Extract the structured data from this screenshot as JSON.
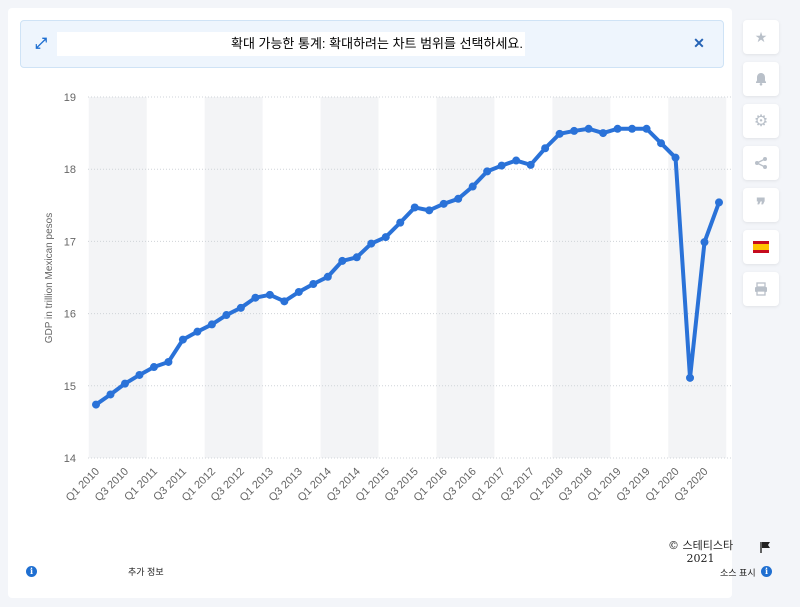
{
  "banner": {
    "text": "확대 가능한 통계: 확대하려는 차트 범위를 선택하세요.",
    "expand_icon": "expand-icon",
    "close_icon": "close-icon",
    "close_symbol": "✕"
  },
  "sidebar": {
    "buttons": [
      {
        "name": "favorite-button",
        "icon": "star-icon",
        "glyph": "★"
      },
      {
        "name": "notification-button",
        "icon": "bell-icon",
        "glyph": "🔔"
      },
      {
        "name": "settings-button",
        "icon": "gear-icon",
        "glyph": "⚙"
      },
      {
        "name": "share-button",
        "icon": "share-icon",
        "glyph": "⋖"
      },
      {
        "name": "cite-button",
        "icon": "quote-icon",
        "glyph": "❞"
      },
      {
        "name": "language-button",
        "icon": "spain-flag-icon",
        "glyph": ""
      },
      {
        "name": "print-button",
        "icon": "printer-icon",
        "glyph": "⎙"
      }
    ]
  },
  "footer": {
    "more_info": "추가 정보",
    "show_source": "소스 표시",
    "copyright_line1": "© 스테티스타",
    "copyright_line2": "2021"
  },
  "colors": {
    "line": "#2a72d8",
    "band": "#f3f4f6",
    "grid": "#cfd3d8",
    "accent": "#1f6fd1"
  },
  "chart_data": {
    "type": "line",
    "title": "",
    "xlabel": "",
    "ylabel": "GDP in trillion Mexican pesos",
    "ylim": [
      14,
      19
    ],
    "yticks": [
      14,
      15,
      16,
      17,
      18,
      19
    ],
    "grid": true,
    "x": [
      "Q1 2010",
      "Q2 2010",
      "Q3 2010",
      "Q4 2010",
      "Q1 2011",
      "Q2 2011",
      "Q3 2011",
      "Q4 2011",
      "Q1 2012",
      "Q2 2012",
      "Q3 2012",
      "Q4 2012",
      "Q1 2013",
      "Q2 2013",
      "Q3 2013",
      "Q4 2013",
      "Q1 2014",
      "Q2 2014",
      "Q3 2014",
      "Q4 2014",
      "Q1 2015",
      "Q2 2015",
      "Q3 2015",
      "Q4 2015",
      "Q1 2016",
      "Q2 2016",
      "Q3 2016",
      "Q4 2016",
      "Q1 2017",
      "Q2 2017",
      "Q3 2017",
      "Q4 2017",
      "Q1 2018",
      "Q2 2018",
      "Q3 2018",
      "Q4 2018",
      "Q1 2019",
      "Q2 2019",
      "Q3 2019",
      "Q4 2019",
      "Q1 2020",
      "Q2 2020",
      "Q3 2020",
      "Q4 2020"
    ],
    "tick_labels": [
      "Q1 2010",
      "Q3 2010",
      "Q1 2011",
      "Q3 2011",
      "Q1 2012",
      "Q3 2012",
      "Q1 2013",
      "Q3 2013",
      "Q1 2014",
      "Q3 2014",
      "Q1 2015",
      "Q3 2015",
      "Q1 2016",
      "Q3 2016",
      "Q1 2017",
      "Q3 2017",
      "Q1 2018",
      "Q3 2018",
      "Q1 2019",
      "Q3 2019",
      "Q1 2020",
      "Q3 2020"
    ],
    "series": [
      {
        "values": [
          14.74,
          14.88,
          15.03,
          15.15,
          15.26,
          15.33,
          15.64,
          15.75,
          15.85,
          15.98,
          16.08,
          16.22,
          16.26,
          16.17,
          16.3,
          16.41,
          16.51,
          16.73,
          16.78,
          16.97,
          17.06,
          17.26,
          17.47,
          17.43,
          17.52,
          17.59,
          17.76,
          17.97,
          18.05,
          18.12,
          18.06,
          18.29,
          18.49,
          18.53,
          18.56,
          18.5,
          18.56,
          18.56,
          18.56,
          18.36,
          18.16,
          15.11,
          16.99,
          17.54
        ]
      }
    ]
  }
}
